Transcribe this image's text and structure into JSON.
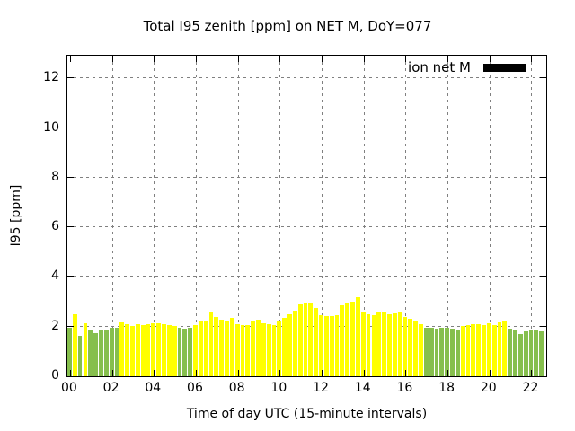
{
  "title": "Total I95 zenith [ppm] on NET M, DoY=077",
  "legend": {
    "label": "ion net M",
    "swatch_color": "#000000"
  },
  "axes": {
    "y_label": "I95 [ppm]",
    "x_label": "Time of day UTC (15-minute intervals)",
    "y_ticks": [
      "0",
      "2",
      "4",
      "6",
      "8",
      "10",
      "12"
    ],
    "x_ticks": [
      "00",
      "02",
      "04",
      "06",
      "08",
      "10",
      "12",
      "14",
      "16",
      "18",
      "20",
      "22"
    ]
  },
  "colors": {
    "yellow": "#ffff00",
    "green": "#86bf4d",
    "grid": "#808080",
    "border": "#000000",
    "background": "#ffffff"
  },
  "chart_data": {
    "type": "bar",
    "title": "Total I95 zenith [ppm] on NET M, DoY=077",
    "xlabel": "Time of day UTC (15-minute intervals)",
    "ylabel": "I95 [ppm]",
    "series_label": "ion net M",
    "x_start": "00:00",
    "x_end": "22:30",
    "interval_minutes": 15,
    "ylim": [
      0,
      12.92
    ],
    "xlim_hours": [
      -0.125,
      22.75
    ],
    "grid": true,
    "legend_position": "top-right",
    "values": [
      1.95,
      2.5,
      1.63,
      2.15,
      1.83,
      1.75,
      1.87,
      1.88,
      1.94,
      1.94,
      2.16,
      2.09,
      2.02,
      2.09,
      2.05,
      2.09,
      2.12,
      2.14,
      2.1,
      2.07,
      2.03,
      1.96,
      1.92,
      1.96,
      2.07,
      2.21,
      2.25,
      2.57,
      2.39,
      2.28,
      2.21,
      2.36,
      2.1,
      2.07,
      2.07,
      2.2,
      2.28,
      2.14,
      2.1,
      2.07,
      2.21,
      2.36,
      2.5,
      2.64,
      2.9,
      2.93,
      2.97,
      2.75,
      2.45,
      2.43,
      2.43,
      2.46,
      2.86,
      2.93,
      3.0,
      3.19,
      2.61,
      2.5,
      2.46,
      2.57,
      2.6,
      2.5,
      2.54,
      2.6,
      2.39,
      2.32,
      2.25,
      2.1,
      1.97,
      1.95,
      1.93,
      1.95,
      1.97,
      1.92,
      1.85,
      2.03,
      2.07,
      2.1,
      2.1,
      2.07,
      2.14,
      2.07,
      2.18,
      2.2,
      1.92,
      1.89,
      1.7,
      1.81,
      1.89,
      1.85,
      1.81
    ],
    "point_colors": [
      "green",
      "yellow",
      "green",
      "yellow",
      "green",
      "green",
      "green",
      "green",
      "green",
      "green",
      "yellow",
      "yellow",
      "yellow",
      "yellow",
      "yellow",
      "yellow",
      "yellow",
      "yellow",
      "yellow",
      "yellow",
      "yellow",
      "green",
      "green",
      "green",
      "yellow",
      "yellow",
      "yellow",
      "yellow",
      "yellow",
      "yellow",
      "yellow",
      "yellow",
      "yellow",
      "yellow",
      "yellow",
      "yellow",
      "yellow",
      "yellow",
      "yellow",
      "yellow",
      "yellow",
      "yellow",
      "yellow",
      "yellow",
      "yellow",
      "yellow",
      "yellow",
      "yellow",
      "yellow",
      "yellow",
      "yellow",
      "yellow",
      "yellow",
      "yellow",
      "yellow",
      "yellow",
      "yellow",
      "yellow",
      "yellow",
      "yellow",
      "yellow",
      "yellow",
      "yellow",
      "yellow",
      "yellow",
      "yellow",
      "yellow",
      "yellow",
      "green",
      "green",
      "green",
      "green",
      "green",
      "green",
      "green",
      "yellow",
      "yellow",
      "yellow",
      "yellow",
      "yellow",
      "yellow",
      "yellow",
      "yellow",
      "yellow",
      "green",
      "green",
      "green",
      "green",
      "green",
      "green",
      "green"
    ]
  }
}
